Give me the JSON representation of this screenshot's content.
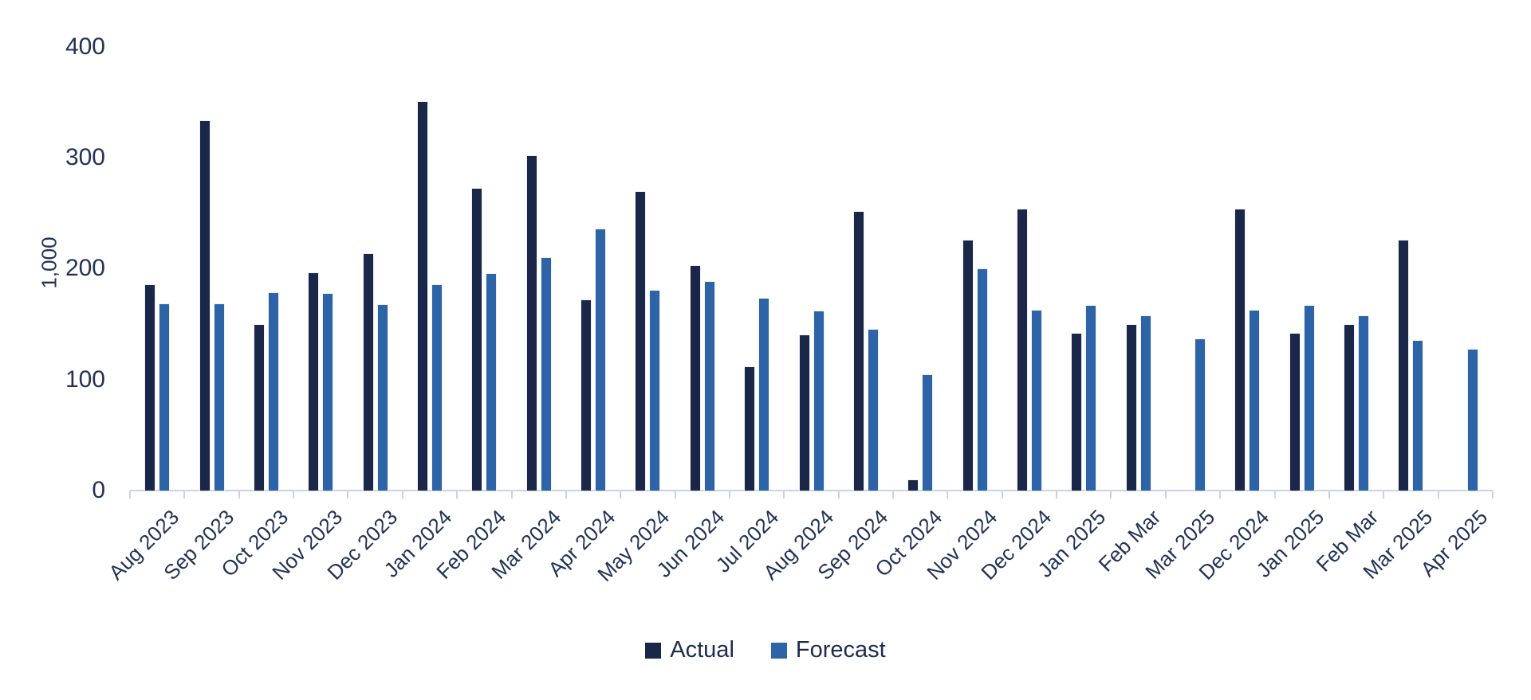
{
  "chart_data": {
    "type": "bar",
    "title": "",
    "xlabel": "",
    "ylabel": "1,000",
    "ylim": [
      0,
      400
    ],
    "yticks": [
      0,
      100,
      200,
      300,
      400
    ],
    "grid": false,
    "legend_position": "bottom-center",
    "categories": [
      "Aug 2023",
      "Sep 2023",
      "Oct 2023",
      "Nov 2023",
      "Dec 2023",
      "Jan 2024",
      "Feb 2024",
      "Mar 2024",
      "Apr 2024",
      "May 2024",
      "Jun 2024",
      "Jul 2024",
      "Aug 2024",
      "Sep 2024",
      "Oct 2024",
      "Nov 2024",
      "Dec 2024",
      "Jan 2025",
      "Feb Mar",
      "Mar 2025",
      "Dec 2024",
      "Jan 2025",
      "Feb Mar",
      "Mar 2025",
      "Apr 2025"
    ],
    "series": [
      {
        "name": "Actual",
        "color": "#1a2748",
        "values": [
          186,
          334,
          150,
          197,
          214,
          351,
          273,
          302,
          172,
          270,
          203,
          112,
          141,
          252,
          10,
          226,
          254,
          142,
          150,
          null,
          254,
          142,
          150,
          226,
          null
        ]
      },
      {
        "name": "Forecast",
        "color": "#2d64a8",
        "values": [
          169,
          169,
          179,
          178,
          168,
          186,
          196,
          210,
          236,
          181,
          189,
          174,
          162,
          146,
          105,
          200,
          163,
          167,
          158,
          137,
          163,
          167,
          158,
          136,
          128
        ]
      }
    ]
  },
  "axis_style": {
    "line_color": "#ccd2e5",
    "text_color": "#223257"
  }
}
